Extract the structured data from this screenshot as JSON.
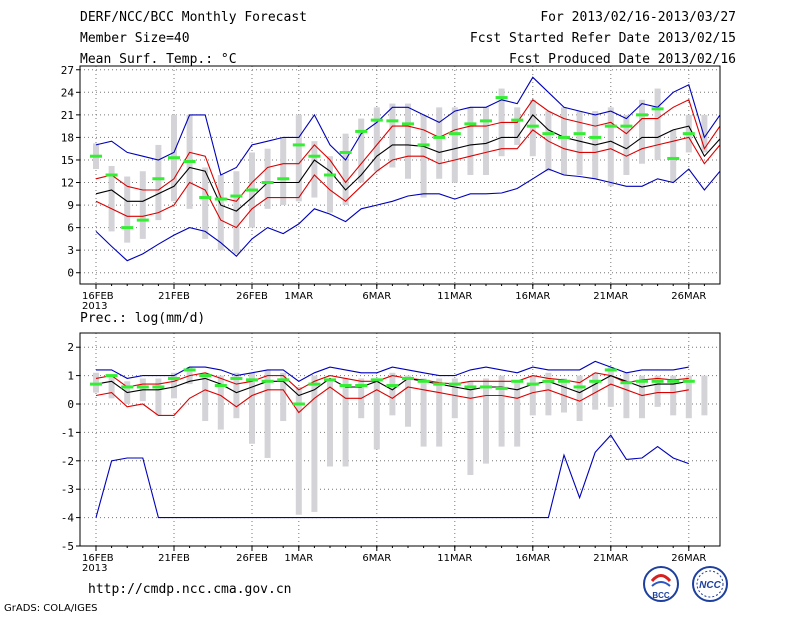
{
  "header": {
    "title": "DERF/NCC/BCC Monthly Forecast",
    "member_size": "Member Size=40",
    "variable": "Mean Surf. Temp.: °C",
    "period": "For 2013/02/16-2013/03/27",
    "start_ref": "Fcst Started Refer Date 2013/02/15",
    "produced": "Fcst Produced Date 2013/02/16"
  },
  "footer": {
    "url": "http://cmdp.ncc.cma.gov.cn",
    "grads_credit": "GrADS: COLA/IGES",
    "logo_left_text": "BCC",
    "logo_right_text": "NCC"
  },
  "colors": {
    "mean": "#000000",
    "spread": "#dd0000",
    "extreme": "#0000bb",
    "observed": "#33ee33",
    "box": "#d4d4d8",
    "grid": "#777777"
  },
  "chart_data": [
    {
      "type": "line",
      "title": "Mean Surf. Temp.: °C",
      "xlabel": "",
      "ylabel": "",
      "x_tick_labels": [
        "16FEB\n2013",
        "21FEB",
        "26FEB",
        "1MAR",
        "6MAR",
        "11MAR",
        "16MAR",
        "21MAR",
        "26MAR"
      ],
      "x_tick_days": [
        1,
        6,
        11,
        14,
        19,
        24,
        29,
        34,
        39
      ],
      "ylim": [
        -1.5,
        27.5
      ],
      "yticks": [
        0,
        3,
        6,
        9,
        12,
        15,
        18,
        21,
        24,
        27
      ],
      "series": [
        {
          "name": "ensemble max",
          "values": [
            5.5,
            3.5,
            1.6,
            2.5,
            3.8,
            5.0,
            6.0,
            5.5,
            4.0,
            2.2,
            4.5,
            6.0,
            5.2,
            6.5,
            8.5,
            7.8,
            6.8,
            8.5,
            9.0,
            9.5,
            10.2,
            10.5,
            10.5,
            9.8,
            10.5,
            10.5,
            10.6,
            11.2,
            12.5,
            13.8,
            13.0,
            12.8,
            12.5,
            12.0,
            11.5,
            11.5,
            12.5,
            12.0,
            13.8,
            11.0,
            13.5
          ]
        },
        {
          "name": "ensemble upper",
          "values": [
            17.0,
            17.5,
            16.0,
            15.5,
            15.0,
            16.0,
            21.0,
            21.0,
            13.0,
            14.0,
            17.0,
            17.5,
            18.0,
            18.0,
            21.0,
            17.0,
            15.0,
            18.5,
            20.0,
            22.0,
            22.0,
            21.0,
            20.0,
            21.5,
            22.0,
            22.0,
            23.0,
            22.5,
            26.0,
            24.0,
            22.0,
            21.5,
            21.0,
            21.5,
            20.5,
            22.5,
            22.0,
            24.0,
            25.0,
            18.0,
            21.0
          ]
        },
        {
          "name": "mean + sd",
          "values": [
            12.5,
            13.0,
            11.5,
            11.0,
            11.0,
            12.5,
            16.0,
            15.5,
            10.0,
            9.5,
            12.0,
            14.0,
            14.5,
            14.5,
            17.0,
            15.0,
            12.0,
            14.5,
            17.0,
            19.5,
            19.5,
            19.0,
            18.0,
            19.0,
            19.5,
            19.5,
            20.0,
            20.0,
            23.0,
            21.5,
            20.5,
            20.0,
            19.5,
            20.0,
            18.5,
            20.5,
            20.5,
            22.0,
            23.0,
            16.5,
            19.5
          ]
        },
        {
          "name": "ensemble mean",
          "values": [
            10.5,
            11.0,
            9.5,
            9.5,
            10.5,
            11.5,
            14.0,
            13.5,
            9.0,
            8.2,
            10.0,
            12.0,
            12.0,
            12.0,
            15.0,
            13.5,
            11.0,
            13.0,
            15.5,
            17.0,
            17.0,
            16.8,
            16.0,
            16.5,
            17.0,
            17.2,
            18.0,
            18.0,
            21.0,
            19.0,
            18.0,
            17.5,
            17.0,
            17.5,
            16.5,
            18.0,
            18.0,
            19.0,
            19.5,
            15.5,
            17.8
          ]
        },
        {
          "name": "mean - sd",
          "values": [
            9.5,
            8.5,
            7.5,
            7.5,
            8.0,
            9.0,
            12.0,
            11.0,
            7.0,
            6.0,
            8.5,
            10.0,
            10.0,
            10.0,
            13.0,
            11.0,
            9.5,
            11.5,
            13.5,
            15.0,
            15.5,
            15.5,
            14.5,
            15.0,
            15.5,
            16.0,
            16.5,
            16.5,
            19.0,
            17.5,
            16.5,
            16.0,
            16.0,
            16.5,
            15.5,
            16.5,
            17.0,
            17.5,
            18.0,
            14.5,
            17.0
          ]
        },
        {
          "name": "observed",
          "values": [
            15.5,
            13.0,
            6.0,
            7.0,
            12.5,
            15.3,
            14.8,
            10.0,
            9.8,
            10.2,
            11.0,
            12.0,
            12.5,
            17.0,
            15.5,
            13.0,
            16.0,
            18.8,
            20.3,
            20.2,
            19.8,
            17.0,
            18.0,
            18.5,
            19.8,
            20.2,
            23.3,
            20.3,
            19.5,
            18.5,
            18.0,
            18.5,
            18.0,
            19.5,
            19.5,
            21.0,
            21.8,
            15.2,
            18.5,
            null,
            null
          ]
        }
      ],
      "box_ranges": [
        [
          13.8,
          17.2
        ],
        [
          5.5,
          14.2
        ],
        [
          4.0,
          12.8
        ],
        [
          4.5,
          13.5
        ],
        [
          7.0,
          17.0
        ],
        [
          9.5,
          21.0
        ],
        [
          8.5,
          21.0
        ],
        [
          4.5,
          14.0
        ],
        [
          3.0,
          13.0
        ],
        [
          2.5,
          13.5
        ],
        [
          6.0,
          16.0
        ],
        [
          8.5,
          16.5
        ],
        [
          9.0,
          18.0
        ],
        [
          9.5,
          21.0
        ],
        [
          10.0,
          17.5
        ],
        [
          8.0,
          15.5
        ],
        [
          9.0,
          18.5
        ],
        [
          12.0,
          20.5
        ],
        [
          13.5,
          22.0
        ],
        [
          14.0,
          22.5
        ],
        [
          12.5,
          22.5
        ],
        [
          10.0,
          21.0
        ],
        [
          12.5,
          22.0
        ],
        [
          12.0,
          22.0
        ],
        [
          13.0,
          22.0
        ],
        [
          13.0,
          22.0
        ],
        [
          15.5,
          24.5
        ],
        [
          17.0,
          22.0
        ],
        [
          15.5,
          23.0
        ],
        [
          13.5,
          21.5
        ],
        [
          13.0,
          22.0
        ],
        [
          13.0,
          21.5
        ],
        [
          12.5,
          21.5
        ],
        [
          11.5,
          22.0
        ],
        [
          13.0,
          21.0
        ],
        [
          14.5,
          23.0
        ],
        [
          15.0,
          24.5
        ],
        [
          12.0,
          19.0
        ],
        [
          16.0,
          21.0
        ],
        [
          16.0,
          21.0
        ]
      ]
    },
    {
      "type": "line",
      "title": "Prec.: log(mm/d)",
      "xlabel": "",
      "ylabel": "",
      "x_tick_labels": [
        "16FEB\n2013",
        "21FEB",
        "26FEB",
        "1MAR",
        "6MAR",
        "11MAR",
        "16MAR",
        "21MAR",
        "26MAR"
      ],
      "x_tick_days": [
        1,
        6,
        11,
        14,
        19,
        24,
        29,
        34,
        39
      ],
      "ylim": [
        -5,
        2.5
      ],
      "yticks": [
        -5,
        -4,
        -3,
        -2,
        -1,
        0,
        1,
        2
      ],
      "series": [
        {
          "name": "ensemble min",
          "values": [
            -4.0,
            -2.0,
            -1.9,
            -1.9,
            -4.0,
            -4.0,
            -4.0,
            -4.0,
            -4.0,
            -4.0,
            -4.0,
            -4.0,
            -4.0,
            -4.0,
            -4.0,
            -4.0,
            -4.0,
            -4.0,
            -4.0,
            -4.0,
            -4.0,
            -4.0,
            -4.0,
            -4.0,
            -4.0,
            -4.0,
            -4.0,
            -4.0,
            -4.0,
            -4.0,
            -1.8,
            -3.3,
            -1.7,
            -1.1,
            -1.95,
            -1.9,
            -1.5,
            -1.9,
            -2.1,
            null,
            null
          ]
        },
        {
          "name": "ensemble max",
          "values": [
            1.2,
            1.2,
            0.9,
            1.0,
            1.0,
            1.0,
            1.3,
            1.3,
            1.2,
            1.0,
            1.1,
            1.2,
            1.2,
            0.8,
            1.1,
            1.3,
            1.2,
            1.1,
            1.1,
            1.3,
            1.2,
            1.1,
            1.0,
            1.0,
            1.2,
            1.3,
            1.2,
            1.1,
            1.3,
            1.2,
            1.2,
            1.2,
            1.5,
            1.3,
            1.1,
            1.2,
            1.2,
            1.2,
            1.3,
            null,
            null
          ]
        },
        {
          "name": "mean + sd",
          "values": [
            0.9,
            1.0,
            0.6,
            0.7,
            0.7,
            0.8,
            1.0,
            1.1,
            0.9,
            0.7,
            0.8,
            1.0,
            1.0,
            0.5,
            0.8,
            1.0,
            0.9,
            0.8,
            0.8,
            1.0,
            0.9,
            0.85,
            0.75,
            0.7,
            0.8,
            0.8,
            0.8,
            0.8,
            1.0,
            0.9,
            0.85,
            0.75,
            1.1,
            1.0,
            0.75,
            0.85,
            0.9,
            0.85,
            0.9,
            null,
            null
          ]
        },
        {
          "name": "ensemble mean",
          "values": [
            0.7,
            0.8,
            0.4,
            0.5,
            0.5,
            0.6,
            0.8,
            0.9,
            0.7,
            0.4,
            0.6,
            0.8,
            0.8,
            0.3,
            0.5,
            0.9,
            0.6,
            0.6,
            0.8,
            0.5,
            0.9,
            0.8,
            0.7,
            0.6,
            0.5,
            0.6,
            0.6,
            0.5,
            0.7,
            0.8,
            0.6,
            0.4,
            0.7,
            1.0,
            0.8,
            0.6,
            0.7,
            0.7,
            0.8,
            null,
            null
          ]
        },
        {
          "name": "mean - sd",
          "values": [
            0.3,
            0.4,
            -0.1,
            0.0,
            -0.4,
            -0.4,
            0.2,
            0.5,
            0.3,
            -0.1,
            0.3,
            0.5,
            0.5,
            -0.3,
            0.2,
            0.6,
            0.2,
            0.2,
            0.5,
            0.2,
            0.6,
            0.5,
            0.4,
            0.3,
            0.2,
            0.3,
            0.3,
            0.2,
            0.4,
            0.5,
            0.3,
            0.1,
            0.4,
            0.7,
            0.5,
            0.3,
            0.4,
            0.4,
            0.5,
            null,
            null
          ]
        },
        {
          "name": "observed",
          "values": [
            0.7,
            1.0,
            0.6,
            0.6,
            0.6,
            0.9,
            1.2,
            1.0,
            0.65,
            0.9,
            0.85,
            0.8,
            0.85,
            0.0,
            0.7,
            0.85,
            0.65,
            0.65,
            0.85,
            0.65,
            0.9,
            0.8,
            0.7,
            0.7,
            0.6,
            0.6,
            0.55,
            0.8,
            0.7,
            0.8,
            0.8,
            0.6,
            0.8,
            1.2,
            0.75,
            0.8,
            0.8,
            0.8,
            0.8,
            null,
            null
          ]
        }
      ],
      "box_ranges": [
        [
          0.4,
          1.1
        ],
        [
          0.2,
          1.0
        ],
        [
          0.0,
          0.8
        ],
        [
          0.1,
          0.9
        ],
        [
          -0.4,
          0.9
        ],
        [
          0.2,
          1.1
        ],
        [
          0.7,
          1.3
        ],
        [
          -0.6,
          1.1
        ],
        [
          -0.9,
          1.0
        ],
        [
          -0.5,
          1.1
        ],
        [
          -1.4,
          1.1
        ],
        [
          -1.9,
          1.2
        ],
        [
          -0.6,
          1.1
        ],
        [
          -3.9,
          0.6
        ],
        [
          -3.8,
          1.0
        ],
        [
          -2.2,
          0.9
        ],
        [
          -2.2,
          0.9
        ],
        [
          -0.5,
          0.9
        ],
        [
          -1.6,
          0.9
        ],
        [
          -0.4,
          1.1
        ],
        [
          -0.8,
          1.0
        ],
        [
          -1.5,
          0.9
        ],
        [
          -1.5,
          0.9
        ],
        [
          -0.5,
          0.9
        ],
        [
          -2.5,
          0.8
        ],
        [
          -2.1,
          0.9
        ],
        [
          -1.5,
          1.0
        ],
        [
          -1.5,
          0.8
        ],
        [
          -0.4,
          1.0
        ],
        [
          -0.4,
          1.1
        ],
        [
          -0.3,
          0.9
        ],
        [
          -0.6,
          1.0
        ],
        [
          -0.2,
          1.1
        ],
        [
          -0.1,
          1.3
        ],
        [
          -0.5,
          1.1
        ],
        [
          -0.5,
          1.0
        ],
        [
          -0.1,
          1.0
        ],
        [
          -0.4,
          1.0
        ],
        [
          -0.5,
          1.0
        ],
        [
          -0.4,
          1.0
        ]
      ]
    }
  ]
}
